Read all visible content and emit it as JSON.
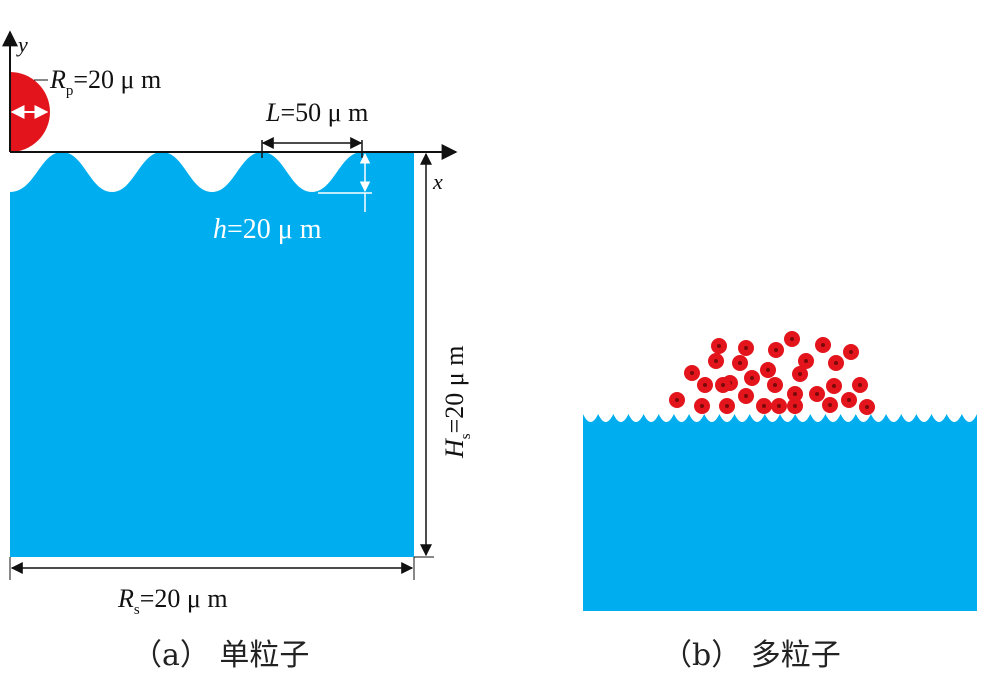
{
  "panel_a": {
    "axis_y_label": "y",
    "axis_x_label": "x",
    "particle_radius_label": "R",
    "particle_radius_sub": "p",
    "particle_radius_value": "=20 μ m",
    "wavelength_label": "L",
    "wavelength_value": "=50 μ m",
    "amplitude_label": "h",
    "amplitude_value": "=20 μ m",
    "height_label": "H",
    "height_sub": "s",
    "height_value": "=20 μ m",
    "width_label": "R",
    "width_sub": "s",
    "width_value": "=20 μ m",
    "caption": "（a）  单粒子"
  },
  "panel_b": {
    "caption": "（b）  多粒子",
    "particle_count": 30
  },
  "colors": {
    "substrate": "#00AEEF",
    "particle": "#E3141B",
    "line": "#111111",
    "dim_white": "#FFFFFF"
  }
}
